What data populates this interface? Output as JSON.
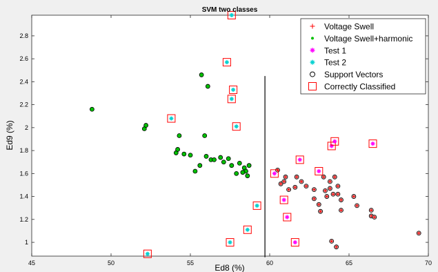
{
  "chart_data": {
    "type": "scatter",
    "title": "SVM two classes",
    "xlabel": "Ed8 (%)",
    "ylabel": "Ed9 (%)",
    "xlim": [
      45,
      70
    ],
    "ylim": [
      0.88,
      2.98
    ],
    "xticks": [
      45,
      50,
      55,
      60,
      65,
      70
    ],
    "yticks": [
      1,
      1.2,
      1.4,
      1.6,
      1.8,
      2,
      2.2,
      2.4,
      2.6,
      2.8
    ],
    "grid": false,
    "legend_position": "top-right",
    "legend": [
      {
        "label": "Voltage Swell",
        "marker": "plus",
        "color": "#ff0000"
      },
      {
        "label": "Voltage Swell+harmonic",
        "marker": "dot",
        "color": "#00c000"
      },
      {
        "label": "Test 1",
        "marker": "star",
        "color": "#ff00ff"
      },
      {
        "label": "Test 2",
        "marker": "star",
        "color": "#00d0d0"
      },
      {
        "label": "Support Vectors",
        "marker": "circle",
        "color": "#000000"
      },
      {
        "label": "Correctly Classified",
        "marker": "square",
        "color": "#ff0000"
      }
    ],
    "boundary": [
      [
        59.7,
        0.87
      ],
      [
        59.7,
        2.45
      ]
    ],
    "series": [
      {
        "name": "Voltage Swell+harmonic",
        "points": [
          [
            48.8,
            2.16
          ],
          [
            52.1,
            1.99
          ],
          [
            52.2,
            2.02
          ],
          [
            54.1,
            1.78
          ],
          [
            54.2,
            1.81
          ],
          [
            54.3,
            1.93
          ],
          [
            54.6,
            1.77
          ],
          [
            55.0,
            1.76
          ],
          [
            55.3,
            1.62
          ],
          [
            55.6,
            1.67
          ],
          [
            55.7,
            2.46
          ],
          [
            55.9,
            1.93
          ],
          [
            56.0,
            1.75
          ],
          [
            56.1,
            2.36
          ],
          [
            56.3,
            1.72
          ],
          [
            56.5,
            1.72
          ],
          [
            56.9,
            1.74
          ],
          [
            57.1,
            1.7
          ],
          [
            57.4,
            1.73
          ],
          [
            57.6,
            1.67
          ],
          [
            57.9,
            1.6
          ],
          [
            58.1,
            1.69
          ],
          [
            58.4,
            1.65
          ],
          [
            58.5,
            1.62
          ],
          [
            58.6,
            1.58
          ],
          [
            58.7,
            1.67
          ],
          [
            58.3,
            1.61
          ]
        ]
      },
      {
        "name": "Voltage Swell",
        "points": [
          [
            60.5,
            1.63
          ],
          [
            60.7,
            1.51
          ],
          [
            60.9,
            1.53
          ],
          [
            61.0,
            1.57
          ],
          [
            61.2,
            1.46
          ],
          [
            61.6,
            1.48
          ],
          [
            61.7,
            1.57
          ],
          [
            62.0,
            1.53
          ],
          [
            62.3,
            1.49
          ],
          [
            62.8,
            1.38
          ],
          [
            63.1,
            1.33
          ],
          [
            63.2,
            1.27
          ],
          [
            63.5,
            1.45
          ],
          [
            63.6,
            1.4
          ],
          [
            63.8,
            1.47
          ],
          [
            63.8,
            1.53
          ],
          [
            64.0,
            1.42
          ],
          [
            64.3,
            1.49
          ],
          [
            64.3,
            1.42
          ],
          [
            64.5,
            1.37
          ],
          [
            64.5,
            1.28
          ],
          [
            63.4,
            1.57
          ],
          [
            63.9,
            1.01
          ],
          [
            64.2,
            0.96
          ],
          [
            65.3,
            1.4
          ],
          [
            65.5,
            1.32
          ],
          [
            66.4,
            1.28
          ],
          [
            66.4,
            1.23
          ],
          [
            66.6,
            1.22
          ],
          [
            69.4,
            1.08
          ],
          [
            64.1,
            1.57
          ],
          [
            62.8,
            1.46
          ]
        ]
      },
      {
        "name": "Test 1",
        "points": [
          [
            60.3,
            1.6
          ],
          [
            60.9,
            1.37
          ],
          [
            61.1,
            1.22
          ],
          [
            61.6,
            1.0
          ],
          [
            61.9,
            1.72
          ],
          [
            63.1,
            1.62
          ],
          [
            63.9,
            1.84
          ],
          [
            64.1,
            1.88
          ],
          [
            66.5,
            1.86
          ]
        ]
      },
      {
        "name": "Test 2",
        "points": [
          [
            52.3,
            0.9
          ],
          [
            53.8,
            2.08
          ],
          [
            57.3,
            2.57
          ],
          [
            57.6,
            2.25
          ],
          [
            57.7,
            2.33
          ],
          [
            57.5,
            1.0
          ],
          [
            57.9,
            2.01
          ],
          [
            58.6,
            1.11
          ],
          [
            59.2,
            1.32
          ],
          [
            57.6,
            2.98
          ]
        ]
      }
    ]
  }
}
